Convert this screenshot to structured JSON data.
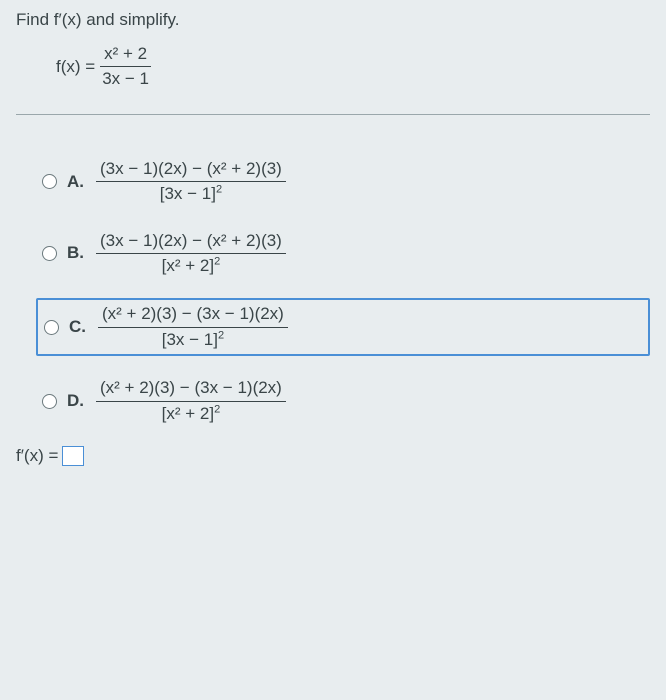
{
  "prompt": "Find f′(x) and simplify.",
  "func": {
    "lhs": "f(x) = ",
    "num": "x² + 2",
    "den": "3x − 1"
  },
  "options": {
    "A": {
      "label": "A.",
      "num": "(3x − 1)(2x) − (x² + 2)(3)",
      "den_base": "[3x − 1]",
      "den_exp": "2",
      "selected": false
    },
    "B": {
      "label": "B.",
      "num": "(3x − 1)(2x) − (x² + 2)(3)",
      "den_base": "[x² + 2]",
      "den_exp": "2",
      "selected": false
    },
    "C": {
      "label": "C.",
      "num": "(x² + 2)(3) − (3x − 1)(2x)",
      "den_base": "[3x − 1]",
      "den_exp": "2",
      "selected": true
    },
    "D": {
      "label": "D.",
      "num": "(x² + 2)(3) − (3x − 1)(2x)",
      "den_base": "[x² + 2]",
      "den_exp": "2",
      "selected": false
    }
  },
  "answer_lhs": "f′(x) = ",
  "colors": {
    "page_bg": "#e8edef",
    "text": "#3a4548",
    "accent": "#4a8fd6",
    "divider": "#9aa7ab"
  }
}
